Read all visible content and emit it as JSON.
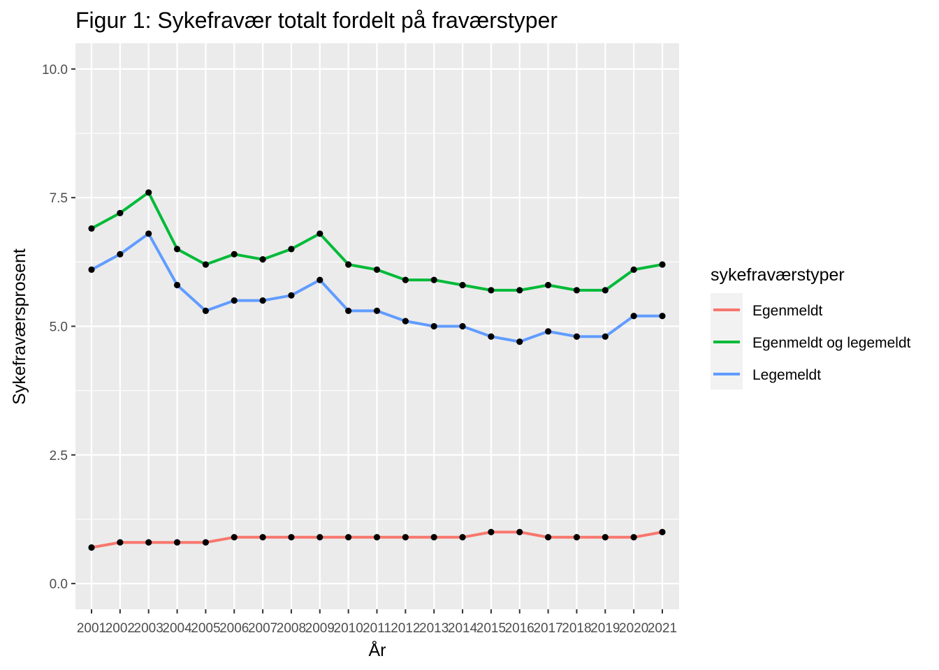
{
  "chart_data": {
    "type": "line",
    "title": "Figur 1: Sykefravær totalt fordelt på fraværstyper",
    "xlabel": "År",
    "ylabel": "Sykefraværsprosent",
    "ylim": [
      -0.5,
      10.5
    ],
    "yticks": [
      "0.0",
      "2.5",
      "5.0",
      "7.5",
      "10.0"
    ],
    "x": [
      "2001",
      "2002",
      "2003",
      "2004",
      "2005",
      "2006",
      "2007",
      "2008",
      "2009",
      "2010",
      "2011",
      "2012",
      "2013",
      "2014",
      "2015",
      "2016",
      "2017",
      "2018",
      "2019",
      "2020",
      "2021"
    ],
    "grid": true,
    "legend_position": "right",
    "legend_title": "sykefraværstyper",
    "series": [
      {
        "name": "Egenmeldt",
        "color": "#F8766D",
        "values": [
          0.7,
          0.8,
          0.8,
          0.8,
          0.8,
          0.9,
          0.9,
          0.9,
          0.9,
          0.9,
          0.9,
          0.9,
          0.9,
          0.9,
          1.0,
          1.0,
          0.9,
          0.9,
          0.9,
          0.9,
          1.0
        ]
      },
      {
        "name": "Egenmeldt og legemeldt",
        "color": "#00BA38",
        "values": [
          6.9,
          7.2,
          7.6,
          6.5,
          6.2,
          6.4,
          6.3,
          6.5,
          6.8,
          6.2,
          6.1,
          5.9,
          5.9,
          5.8,
          5.7,
          5.7,
          5.8,
          5.7,
          5.7,
          6.1,
          6.2
        ]
      },
      {
        "name": "Legemeldt",
        "color": "#619CFF",
        "values": [
          6.1,
          6.4,
          6.8,
          5.8,
          5.3,
          5.5,
          5.5,
          5.6,
          5.9,
          5.3,
          5.3,
          5.1,
          5.0,
          5.0,
          4.8,
          4.7,
          4.9,
          4.8,
          4.8,
          5.2,
          5.2
        ]
      }
    ],
    "point_color": "#000000",
    "panel_color": "#EBEBEB"
  }
}
